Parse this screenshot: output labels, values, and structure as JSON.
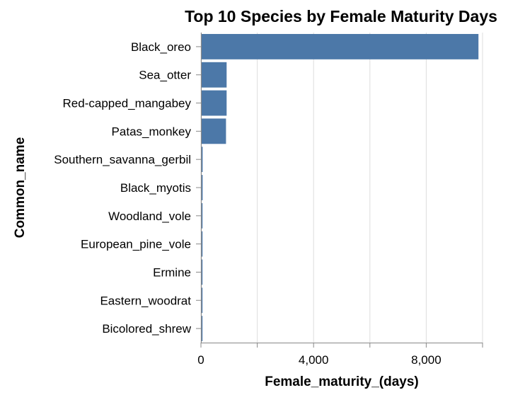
{
  "chart_data": {
    "type": "bar",
    "orientation": "horizontal",
    "title": "Top 10 Species by Female Maturity Days",
    "xlabel": "Female_maturity_(days)",
    "ylabel": "Common_name",
    "categories": [
      "Black_oreo",
      "Sea_otter",
      "Red-capped_mangabey",
      "Patas_monkey",
      "Southern_savanna_gerbil",
      "Black_myotis",
      "Woodland_vole",
      "European_pine_vole",
      "Ermine",
      "Eastern_woodrat",
      "Bicolored_shrew"
    ],
    "values": [
      9855,
      912,
      912,
      890,
      60,
      60,
      56,
      56,
      55,
      55,
      55
    ],
    "xlim": [
      0,
      10000
    ],
    "xticks": [
      0,
      2000,
      4000,
      6000,
      8000,
      10000
    ],
    "xtick_labels": [
      "0",
      "",
      "4,000",
      "",
      "8,000",
      ""
    ],
    "grid": true,
    "bar_color": "#4c78a8"
  }
}
